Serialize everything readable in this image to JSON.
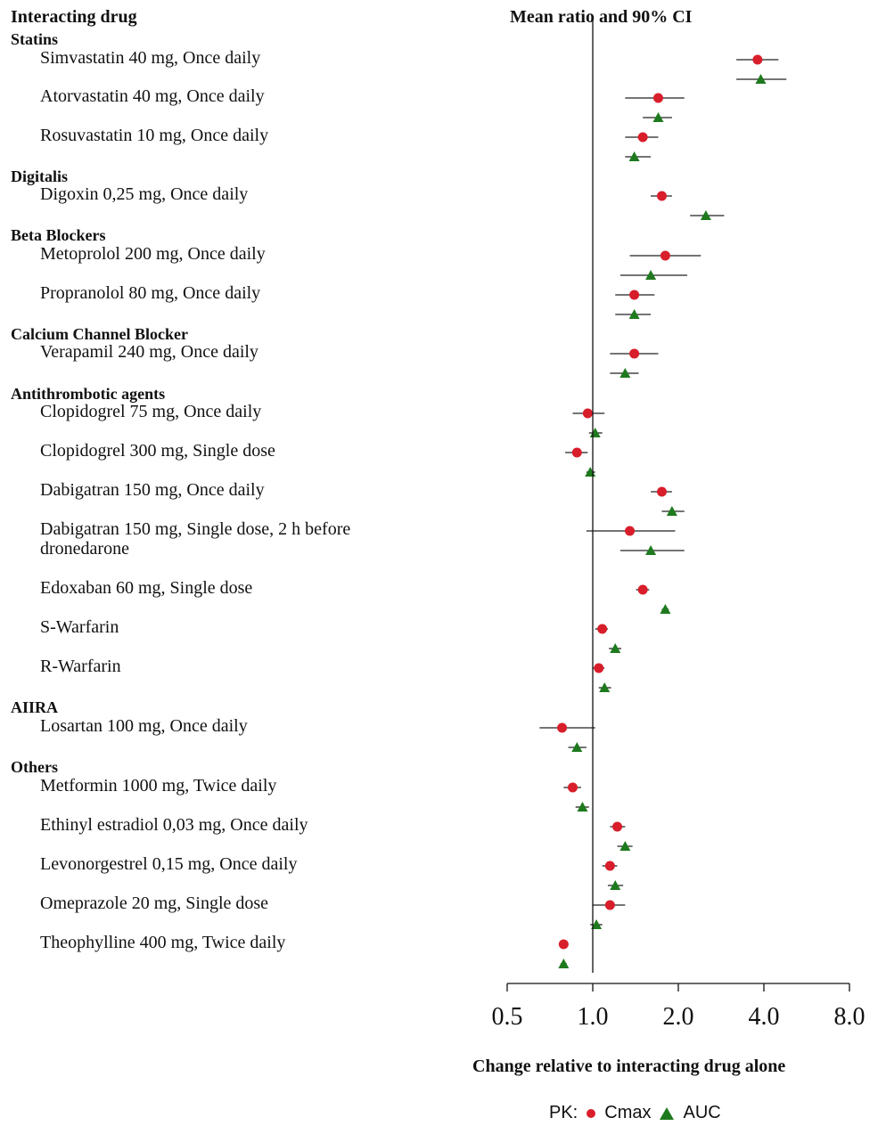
{
  "chart_data": {
    "type": "forest",
    "col_header_left": "Interacting drug",
    "col_header_right": "Mean ratio and 90% CI",
    "xlabel": "Change relative to interacting drug alone",
    "x_scale": "log2",
    "xlim": [
      0.5,
      8.0
    ],
    "x_ticks": [
      "0.5",
      "1.0",
      "2.0",
      "4.0",
      "8.0"
    ],
    "reference_line": 1.0,
    "legend": {
      "prefix": "PK:",
      "cmax_label": "Cmax",
      "auc_label": "AUC",
      "placement": "bottom-right"
    },
    "colors": {
      "cmax": "#d81e2a",
      "auc": "#1f7a1f"
    },
    "groups": [
      {
        "name": "Statins",
        "rows": [
          {
            "label": "Simvastatin 40 mg, Once daily",
            "cmax": [
              3.8,
              3.2,
              4.5
            ],
            "auc": [
              3.9,
              3.2,
              4.8
            ]
          },
          {
            "label": "Atorvastatin 40 mg, Once daily",
            "cmax": [
              1.7,
              1.3,
              2.1
            ],
            "auc": [
              1.7,
              1.5,
              1.9
            ]
          },
          {
            "label": "Rosuvastatin 10 mg, Once daily",
            "cmax": [
              1.5,
              1.3,
              1.7
            ],
            "auc": [
              1.4,
              1.3,
              1.6
            ]
          }
        ]
      },
      {
        "name": "Digitalis",
        "rows": [
          {
            "label": "Digoxin 0,25 mg, Once daily",
            "cmax": [
              1.75,
              1.6,
              1.9
            ],
            "auc": [
              2.5,
              2.2,
              2.9
            ]
          }
        ]
      },
      {
        "name": "Beta Blockers",
        "rows": [
          {
            "label": "Metoprolol 200 mg, Once daily",
            "cmax": [
              1.8,
              1.35,
              2.4
            ],
            "auc": [
              1.6,
              1.25,
              2.15
            ]
          }
        ]
      },
      {
        "name": "",
        "rows": [
          {
            "label": "Propranolol 80 mg, Once daily",
            "cmax": [
              1.4,
              1.2,
              1.65
            ],
            "auc": [
              1.4,
              1.2,
              1.6
            ]
          }
        ]
      },
      {
        "name": "Calcium Channel Blocker",
        "rows": [
          {
            "label": "Verapamil 240 mg, Once daily",
            "cmax": [
              1.4,
              1.15,
              1.7
            ],
            "auc": [
              1.3,
              1.15,
              1.45
            ]
          }
        ]
      },
      {
        "name": "Antithrombotic agents",
        "rows": [
          {
            "label": "Clopidogrel 75 mg, Once daily",
            "cmax": [
              0.96,
              0.85,
              1.1
            ],
            "auc": [
              1.02,
              0.97,
              1.08
            ]
          },
          {
            "label": "Clopidogrel 300 mg, Single dose",
            "cmax": [
              0.88,
              0.8,
              0.96
            ],
            "auc": [
              0.98,
              0.95,
              1.02
            ]
          },
          {
            "label": "Dabigatran 150 mg, Once daily",
            "cmax": [
              1.75,
              1.6,
              1.9
            ],
            "auc": [
              1.9,
              1.75,
              2.1
            ]
          },
          {
            "label": "Dabigatran 150 mg, Single dose, 2 h before|dronedarone",
            "cmax": [
              1.35,
              0.95,
              1.95
            ],
            "auc": [
              1.6,
              1.25,
              2.1
            ]
          },
          {
            "label": "Edoxaban 60 mg, Single dose",
            "cmax": [
              1.5,
              1.42,
              1.58
            ],
            "auc": [
              1.8,
              1.75,
              1.85
            ]
          },
          {
            "label": "S-Warfarin",
            "cmax": [
              1.08,
              1.02,
              1.13
            ],
            "auc": [
              1.2,
              1.14,
              1.26
            ]
          },
          {
            "label": "R-Warfarin",
            "cmax": [
              1.05,
              1.0,
              1.1
            ],
            "auc": [
              1.1,
              1.05,
              1.16
            ]
          }
        ]
      },
      {
        "name": "AIIRA",
        "rows": [
          {
            "label": "Losartan 100 mg, Once daily",
            "cmax": [
              0.78,
              0.65,
              1.02
            ],
            "auc": [
              0.88,
              0.82,
              0.95
            ]
          }
        ]
      },
      {
        "name": "Others",
        "rows": [
          {
            "label": "Metformin 1000 mg, Twice daily",
            "cmax": [
              0.85,
              0.79,
              0.91
            ],
            "auc": [
              0.92,
              0.87,
              0.97
            ]
          },
          {
            "label": "Ethinyl estradiol 0,03 mg, Once daily",
            "cmax": [
              1.22,
              1.15,
              1.3
            ],
            "auc": [
              1.3,
              1.22,
              1.38
            ]
          },
          {
            "label": "Levonorgestrel 0,15 mg, Once daily",
            "cmax": [
              1.15,
              1.08,
              1.22
            ],
            "auc": [
              1.2,
              1.13,
              1.28
            ]
          },
          {
            "label": "Omeprazole 20 mg, Single dose",
            "cmax": [
              1.15,
              1.0,
              1.3
            ],
            "auc": [
              1.03,
              0.98,
              1.08
            ]
          },
          {
            "label": "Theophylline 400 mg, Twice daily",
            "cmax": [
              0.79,
              0.77,
              0.81
            ],
            "auc": [
              0.79,
              0.77,
              0.81
            ]
          }
        ]
      }
    ]
  }
}
